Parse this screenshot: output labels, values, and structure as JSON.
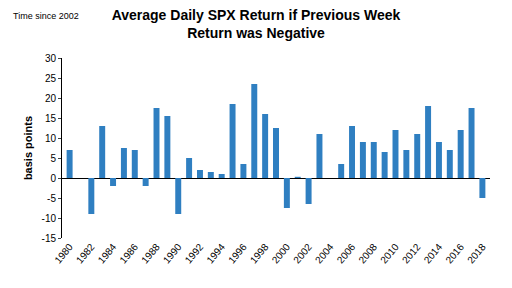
{
  "chart_data": {
    "type": "bar",
    "title": "Average Daily SPX Return if Previous Week\nReturn was Negative",
    "subtitle": "Time since 2002",
    "y_label": "basis points",
    "categories": [
      "1980",
      null,
      "1982",
      null,
      "1984",
      null,
      "1986",
      null,
      "1988",
      null,
      "1990",
      null,
      "1992",
      null,
      "1994",
      null,
      "1996",
      null,
      "1998",
      null,
      "2000",
      null,
      "2002",
      null,
      "2004",
      null,
      "2006",
      null,
      "2008",
      null,
      "2010",
      null,
      "2012",
      null,
      "2014",
      null,
      "2016",
      null,
      "2018"
    ],
    "values": [
      7,
      0,
      -9,
      13,
      -2,
      7.5,
      7,
      -2,
      17.5,
      15.5,
      -9,
      5,
      2,
      1.5,
      1,
      18.5,
      3.5,
      23.5,
      16,
      12.5,
      -7.5,
      0.3,
      -6.5,
      11,
      0,
      3.5,
      13,
      9,
      9,
      6.5,
      12,
      7,
      11,
      18,
      9,
      7,
      12,
      17.5,
      -5
    ],
    "color": "#2f7fc1",
    "ylim": [
      -15,
      30
    ],
    "yticks": [
      -15,
      -10,
      -5,
      0,
      5,
      10,
      15,
      20,
      25,
      30
    ],
    "grid": false
  }
}
